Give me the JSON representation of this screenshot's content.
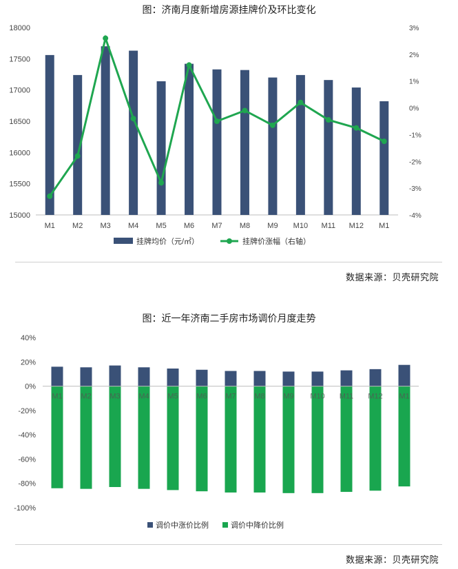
{
  "charts": [
    {
      "caption": "图：济南月度新增房源挂牌价及环比变化",
      "source": "数据来源：贝壳研究院"
    },
    {
      "caption": "图：近一年济南二手房市场调价月度走势",
      "source": "数据来源：贝壳研究院"
    }
  ],
  "chart_data": [
    {
      "type": "bar",
      "categories": [
        "M1",
        "M2",
        "M3",
        "M4",
        "M5",
        "M6",
        "M7",
        "M8",
        "M9",
        "M10",
        "M11",
        "M12",
        "M1"
      ],
      "series": [
        {
          "name": "挂牌均价（元/㎡）",
          "type": "bar",
          "axis": "left",
          "color": "#3a5177",
          "values": [
            17560,
            17240,
            17700,
            17630,
            17140,
            17420,
            17330,
            17320,
            17200,
            17240,
            17160,
            17040,
            16820
          ]
        },
        {
          "name": "挂牌价涨幅（右轴）",
          "type": "line",
          "axis": "right",
          "color": "#1fa650",
          "values": [
            -3.3,
            -1.8,
            2.6,
            -0.4,
            -2.8,
            1.6,
            -0.5,
            -0.1,
            -0.65,
            0.2,
            -0.45,
            -0.75,
            -1.25
          ]
        }
      ],
      "yticks_left": [
        "15000",
        "15500",
        "16000",
        "16500",
        "17000",
        "17500",
        "18000"
      ],
      "ylim_left": [
        15000,
        18000
      ],
      "yticks_right": [
        "-4%",
        "-3%",
        "-2%",
        "-1%",
        "0%",
        "1%",
        "2%",
        "3%"
      ],
      "ylim_right": [
        -4,
        3
      ],
      "legend_position": "bottom"
    },
    {
      "type": "bar",
      "categories": [
        "M1",
        "M2",
        "M3",
        "M4",
        "M5",
        "M6",
        "M7",
        "M8",
        "M9",
        "M10",
        "M11",
        "M12",
        "M1"
      ],
      "series": [
        {
          "name": "调价中涨价比例",
          "color": "#3a5177",
          "values": [
            16,
            15.5,
            17,
            15.5,
            14.5,
            13.5,
            12.5,
            12.5,
            12,
            12,
            13,
            14,
            17.5
          ]
        },
        {
          "name": "调价中降价比例",
          "color": "#19a64f",
          "values": [
            -84,
            -84.5,
            -83,
            -84.5,
            -85.5,
            -86.5,
            -87.5,
            -87.5,
            -88,
            -88,
            -87,
            -86,
            -82.5
          ]
        }
      ],
      "yticks": [
        "-100%",
        "-80%",
        "-60%",
        "-40%",
        "-20%",
        "0%",
        "20%",
        "40%"
      ],
      "ylim": [
        -100,
        40
      ],
      "legend_position": "bottom"
    }
  ]
}
